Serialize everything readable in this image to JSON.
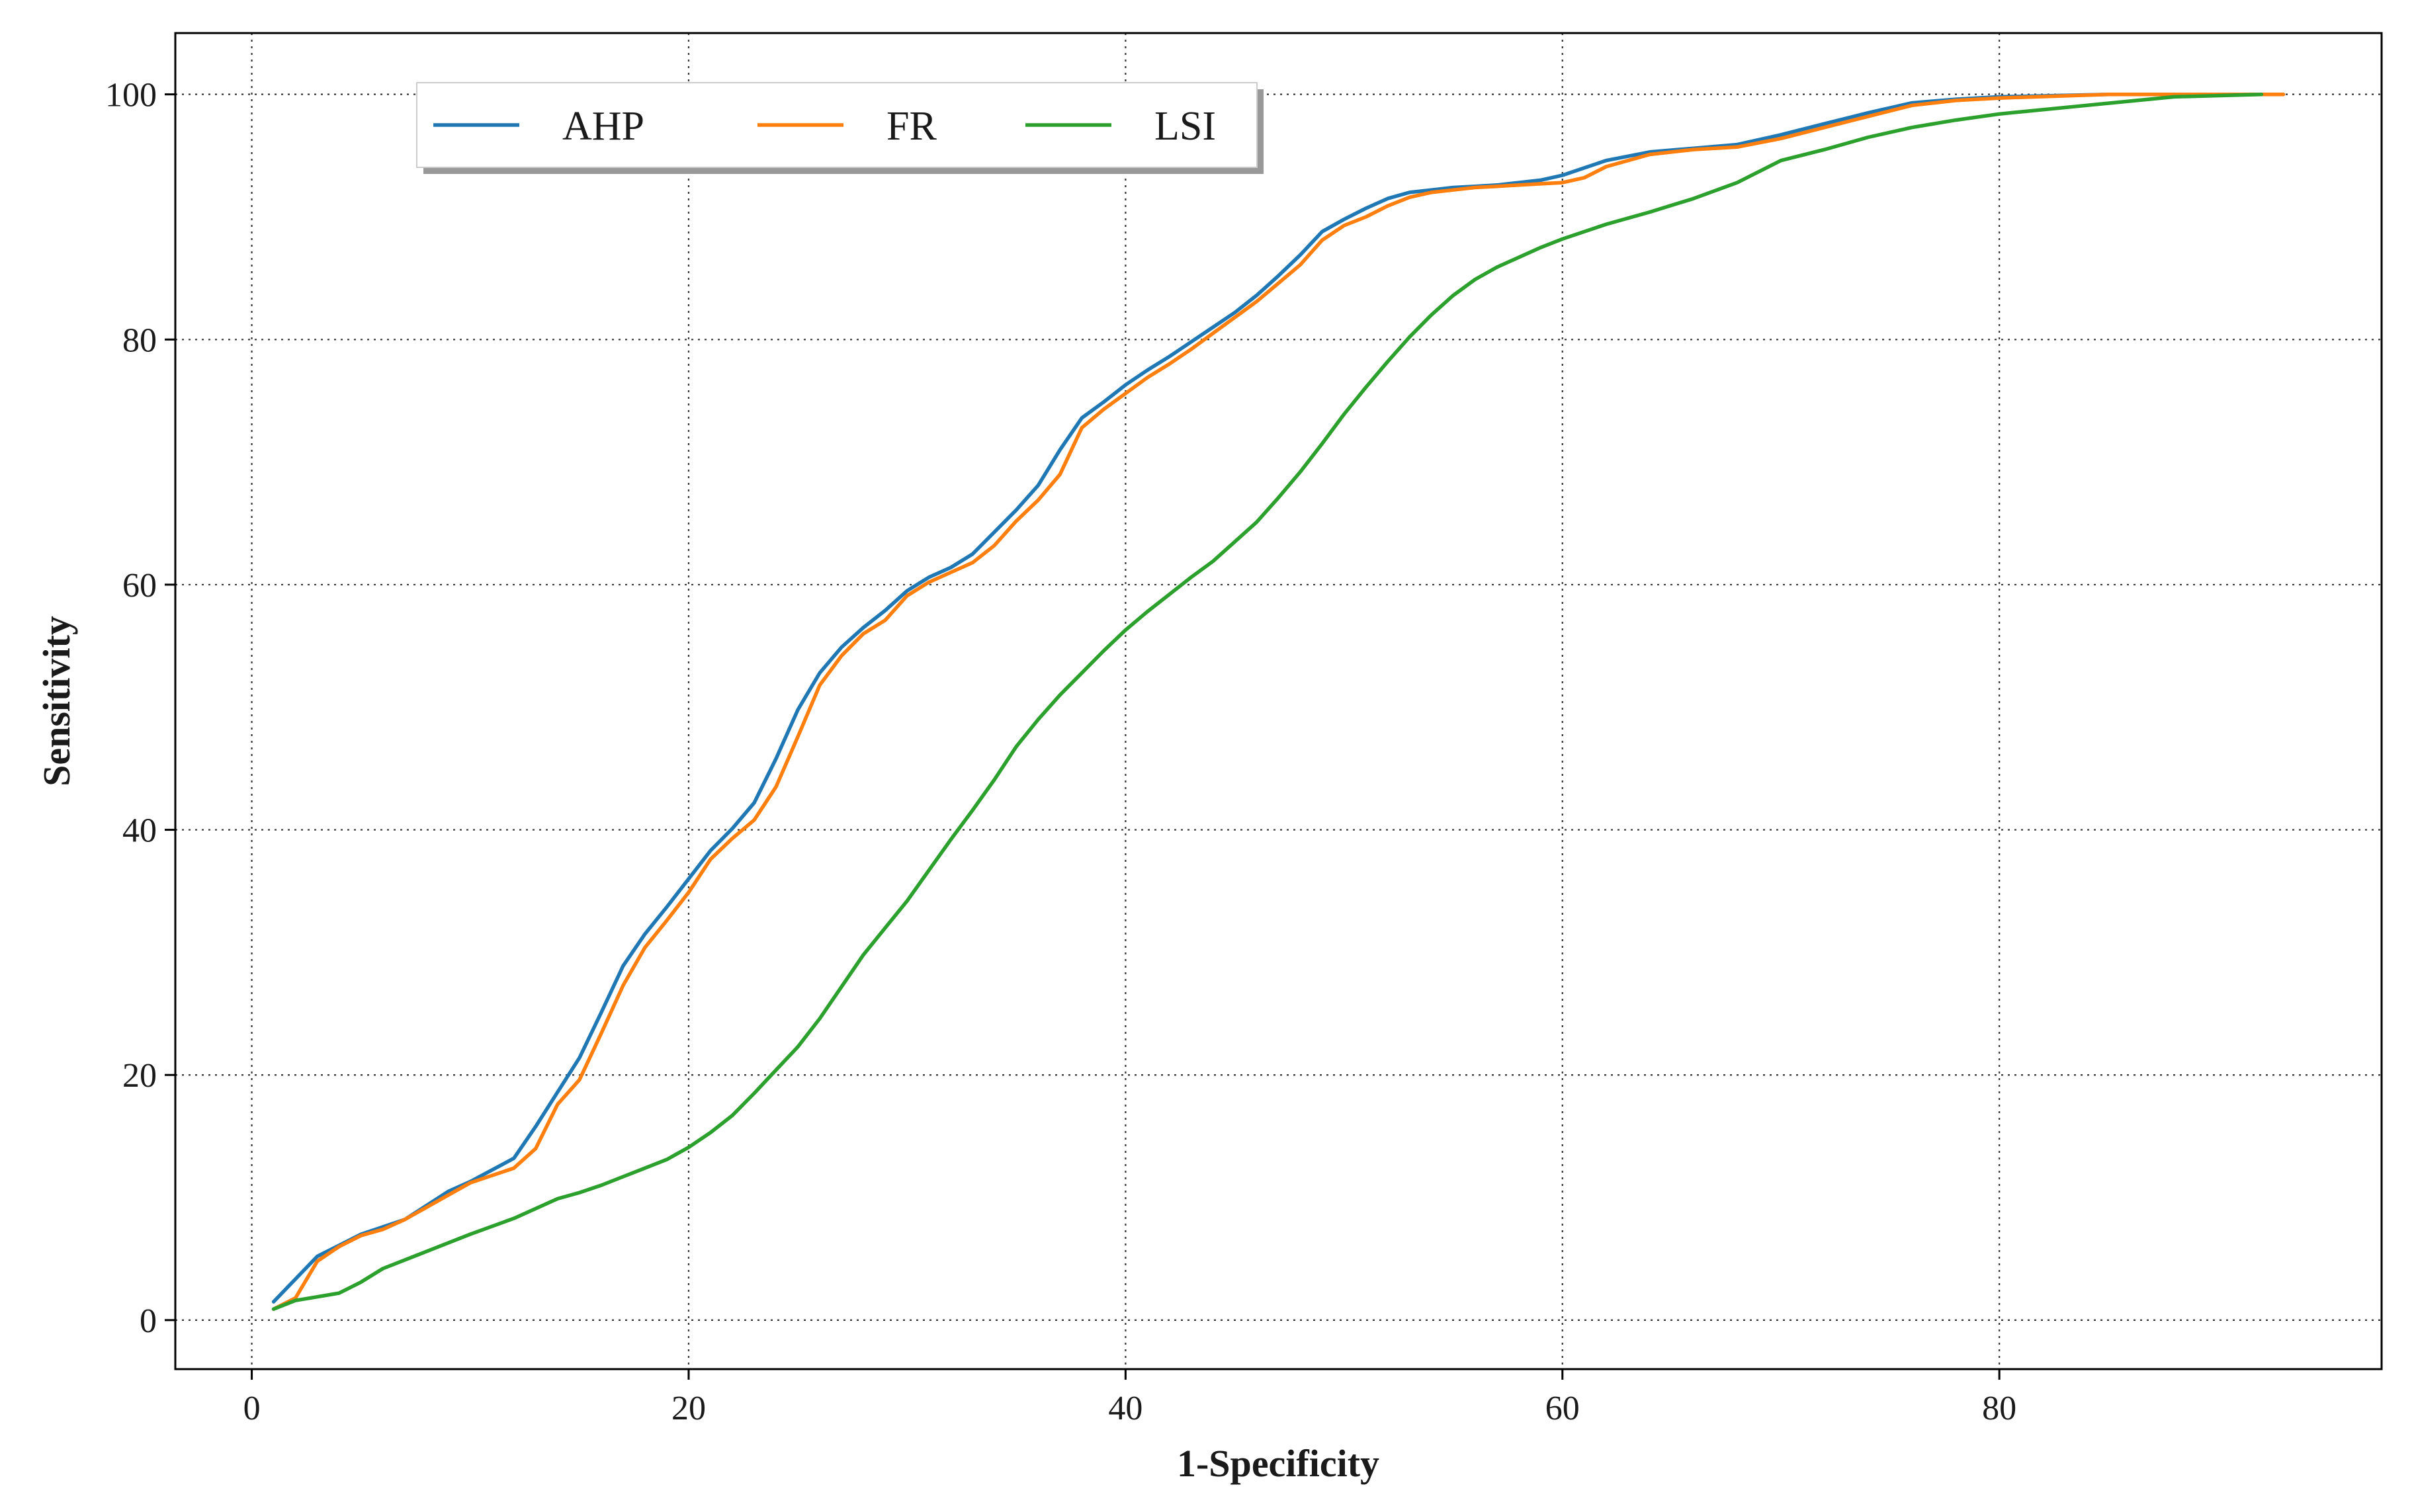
{
  "chart_data": {
    "type": "line",
    "title": "",
    "xlabel": "1-Specificity",
    "ylabel": "Sensitivity",
    "xlim": [
      -3.5,
      97.5
    ],
    "ylim": [
      -4,
      105
    ],
    "xticks": [
      0,
      20,
      40,
      60,
      80
    ],
    "yticks": [
      0,
      20,
      40,
      60,
      80,
      100
    ],
    "grid": true,
    "grid_style": "dotted",
    "legend_position": "top-left",
    "series": [
      {
        "name": "AHP",
        "color": "#1f77b4",
        "x": [
          1,
          3,
          5,
          7,
          9,
          10,
          12,
          13,
          14,
          15,
          16,
          17,
          18,
          19,
          20,
          21,
          22,
          23,
          24,
          25,
          26,
          27,
          28,
          29,
          30,
          31,
          32,
          33,
          34,
          35,
          36,
          37,
          38,
          39,
          40,
          41,
          42,
          43,
          44,
          45,
          46,
          47,
          48,
          49,
          50,
          51,
          52,
          53,
          54,
          55,
          56,
          57,
          58,
          59,
          60,
          62,
          64,
          66,
          68,
          70,
          72,
          74,
          76,
          78,
          80,
          85,
          90,
          93
        ],
        "y": [
          1.5,
          5.2,
          7.0,
          8.2,
          10.5,
          11.3,
          13.2,
          15.8,
          18.6,
          21.4,
          25.1,
          28.9,
          31.5,
          33.7,
          36.0,
          38.3,
          40.1,
          42.2,
          45.8,
          49.8,
          52.8,
          54.9,
          56.5,
          57.9,
          59.5,
          60.6,
          61.4,
          62.5,
          64.3,
          66.1,
          68.1,
          71.0,
          73.6,
          74.9,
          76.3,
          77.5,
          78.6,
          79.8,
          81.0,
          82.2,
          83.6,
          85.2,
          86.9,
          88.8,
          89.8,
          90.7,
          91.5,
          92.0,
          92.2,
          92.4,
          92.5,
          92.6,
          92.8,
          93.0,
          93.4,
          94.6,
          95.3,
          95.6,
          95.9,
          96.7,
          97.6,
          98.5,
          99.3,
          99.6,
          99.8,
          100,
          100,
          100
        ]
      },
      {
        "name": "FR",
        "color": "#ff7f0e",
        "x": [
          1,
          2,
          3,
          4,
          5,
          6,
          7,
          8,
          9,
          10,
          11,
          12,
          13,
          14,
          15,
          16,
          17,
          18,
          19,
          20,
          21,
          22,
          23,
          24,
          25,
          26,
          27,
          28,
          29,
          30,
          31,
          32,
          33,
          34,
          35,
          36,
          37,
          38,
          39,
          40,
          41,
          42,
          43,
          44,
          45,
          46,
          47,
          48,
          49,
          50,
          51,
          52,
          53,
          54,
          55,
          56,
          57,
          58,
          59,
          60,
          61,
          62,
          64,
          66,
          68,
          70,
          72,
          74,
          76,
          78,
          80,
          85,
          90,
          93
        ],
        "y": [
          0.9,
          1.8,
          4.8,
          6.0,
          6.9,
          7.4,
          8.2,
          9.2,
          10.2,
          11.2,
          11.8,
          12.4,
          14.0,
          17.6,
          19.6,
          23.4,
          27.3,
          30.4,
          32.6,
          34.9,
          37.6,
          39.3,
          40.8,
          43.5,
          47.6,
          51.8,
          54.2,
          56.0,
          57.1,
          59.1,
          60.2,
          61.0,
          61.8,
          63.2,
          65.2,
          66.9,
          69.0,
          72.8,
          74.3,
          75.6,
          76.9,
          78.0,
          79.2,
          80.5,
          81.8,
          83.1,
          84.6,
          86.1,
          88.1,
          89.3,
          90.0,
          90.9,
          91.6,
          92.0,
          92.2,
          92.4,
          92.5,
          92.6,
          92.7,
          92.8,
          93.2,
          94.1,
          95.1,
          95.5,
          95.7,
          96.4,
          97.3,
          98.2,
          99.1,
          99.5,
          99.7,
          100,
          100,
          100
        ]
      },
      {
        "name": "LSI",
        "color": "#2ca02c",
        "x": [
          1,
          2,
          3,
          4,
          5,
          6,
          8,
          10,
          12,
          14,
          15,
          16,
          17,
          18,
          19,
          20,
          21,
          22,
          23,
          24,
          25,
          26,
          27,
          28,
          29,
          30,
          31,
          32,
          33,
          34,
          35,
          36,
          37,
          38,
          39,
          40,
          41,
          42,
          43,
          44,
          45,
          46,
          47,
          48,
          49,
          50,
          51,
          52,
          53,
          54,
          55,
          56,
          57,
          58,
          59,
          60,
          62,
          64,
          66,
          68,
          70,
          72,
          74,
          76,
          78,
          80,
          84,
          88,
          92
        ],
        "y": [
          0.9,
          1.6,
          1.9,
          2.2,
          3.1,
          4.2,
          5.6,
          7.0,
          8.3,
          9.9,
          10.4,
          11.0,
          11.7,
          12.4,
          13.1,
          14.1,
          15.3,
          16.7,
          18.5,
          20.4,
          22.3,
          24.6,
          27.2,
          29.8,
          32.0,
          34.2,
          36.7,
          39.2,
          41.6,
          44.1,
          46.8,
          49.0,
          51.0,
          52.8,
          54.6,
          56.3,
          57.8,
          59.2,
          60.6,
          61.9,
          63.5,
          65.1,
          67.1,
          69.2,
          71.5,
          73.9,
          76.1,
          78.2,
          80.2,
          82.0,
          83.6,
          84.9,
          85.9,
          86.7,
          87.5,
          88.2,
          89.4,
          90.4,
          91.5,
          92.8,
          94.6,
          95.5,
          96.5,
          97.3,
          97.9,
          98.4,
          99.1,
          99.8,
          100
        ]
      }
    ]
  }
}
